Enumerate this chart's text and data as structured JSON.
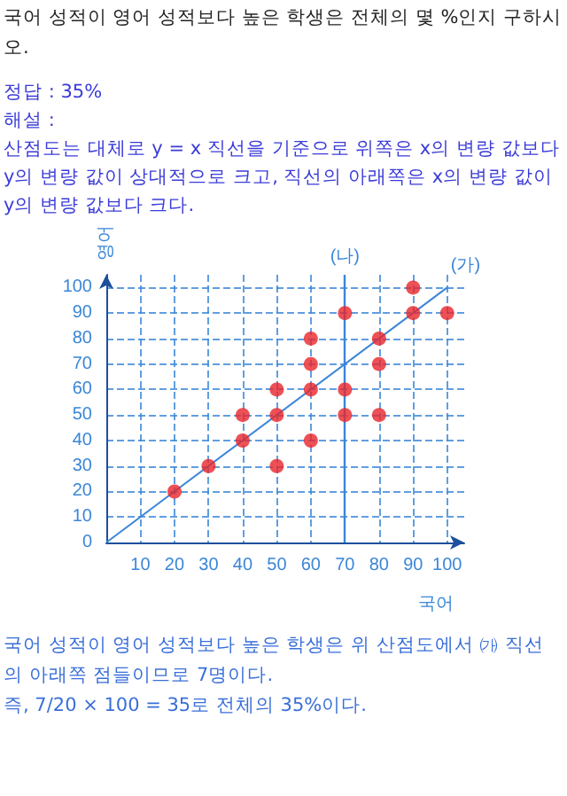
{
  "chart_data": {
    "type": "scatter",
    "title": "국어 성적이 영어 성적보다 높은 학생은 전체의 몇 %인지 구하시오.",
    "annotations": [
      "정답 : 35%",
      "해설 :",
      "산점도는 대체로 y = x 직선을 기준으로 위쪽은 x의 변량 값보다 y의 변량 값이 상대적으로 크고, 직선의 아래쪽은 x의 변량 값이 y의 변량 값보다 크다.",
      "국어 성적이 영어 성적보다 높은 학생은 위 산점도에서 ㈎ 직선의 아래쪽 점들이므로 7명이다.",
      "즉, 7/20 × 100 = 35로 전체의 35%이다."
    ],
    "xlabel": "국어",
    "ylabel": "영어",
    "series": [
      {
        "marker": "circle",
        "color": "#e8262a",
        "x": [
          20,
          30,
          40,
          40,
          50,
          50,
          50,
          60,
          60,
          60,
          60,
          70,
          70,
          70,
          80,
          80,
          80,
          90,
          90,
          100
        ],
        "values": [
          20,
          30,
          40,
          50,
          30,
          50,
          60,
          40,
          60,
          70,
          80,
          50,
          60,
          90,
          50,
          70,
          80,
          90,
          100,
          90
        ]
      },
      {
        "type": "line",
        "marker": "none",
        "name": "(가)",
        "color": "#3a86d8",
        "x": [
          0,
          100
        ],
        "values": [
          0,
          100
        ]
      }
    ],
    "ref_lines": [
      {
        "axis": "x",
        "value": 70,
        "label": "(나)",
        "color": "#3a86d8",
        "line_style": "solid"
      }
    ],
    "xlim": [
      0,
      105
    ],
    "ylim": [
      0,
      105
    ],
    "xticks": [
      {
        "value": 0,
        "label": null
      },
      10,
      20,
      30,
      40,
      50,
      60,
      70,
      80,
      90,
      100
    ],
    "yticks": [
      0,
      10,
      20,
      30,
      40,
      50,
      60,
      70,
      80,
      90,
      100
    ],
    "grid": true,
    "legend": false
  }
}
